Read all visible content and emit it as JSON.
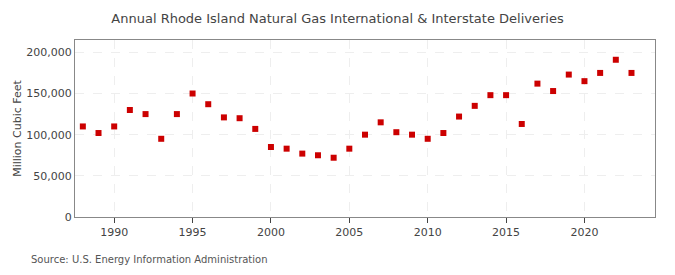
{
  "chart_data": {
    "type": "scatter",
    "title": "Annual Rhode Island Natural Gas International & Interstate Deliveries",
    "ylabel": "Million Cubic Feet",
    "source": "Source: U.S. Energy Information Administration",
    "x": [
      1988,
      1989,
      1990,
      1991,
      1992,
      1993,
      1994,
      1995,
      1996,
      1997,
      1998,
      1999,
      2000,
      2001,
      2002,
      2003,
      2004,
      2005,
      2006,
      2007,
      2008,
      2009,
      2010,
      2011,
      2012,
      2013,
      2014,
      2015,
      2016,
      2017,
      2018,
      2019,
      2020,
      2021,
      2022,
      2023
    ],
    "values": [
      110000,
      102000,
      110000,
      130000,
      125000,
      95000,
      125000,
      150000,
      137000,
      121000,
      120000,
      107000,
      85000,
      83000,
      77000,
      75000,
      72000,
      83000,
      100000,
      115000,
      103000,
      100000,
      95000,
      102000,
      122000,
      135000,
      148000,
      148000,
      113000,
      162000,
      153000,
      173000,
      165000,
      175000,
      191000,
      175000
    ],
    "color": "#cc0000",
    "marker": "square",
    "xlim": [
      1987.5,
      2024.5
    ],
    "xticks": [
      1990,
      1995,
      2000,
      2005,
      2010,
      2015,
      2020
    ],
    "ylim": [
      0,
      215000
    ],
    "yticks": [
      0,
      {
        "value": 50000,
        "label": "50,000"
      },
      {
        "value": 100000,
        "label": "100,000"
      },
      {
        "value": 150000,
        "label": "150,000"
      },
      {
        "value": 200000,
        "label": "200,000"
      }
    ],
    "grid": true
  }
}
